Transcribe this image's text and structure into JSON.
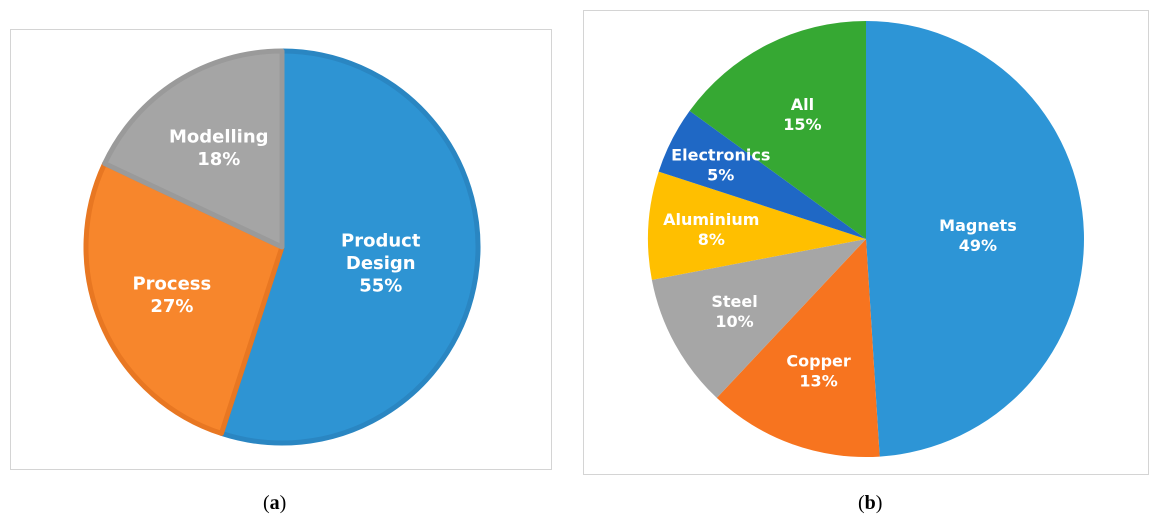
{
  "chart_data": [
    {
      "type": "pie",
      "panel": "a",
      "slices": [
        {
          "label": "Product Design",
          "value": 55,
          "pct_text": "55%",
          "color": "#2e94d3"
        },
        {
          "label": "Process",
          "value": 27,
          "pct_text": "27%",
          "color": "#f7862c"
        },
        {
          "label": "Modelling",
          "value": 18,
          "pct_text": "18%",
          "color": "#a5a5a5"
        }
      ],
      "start_angle_deg": 0,
      "direction": "clockwise",
      "border_colors": [
        "#2a86c2",
        "#e87722",
        "#9a9a9a"
      ]
    },
    {
      "type": "pie",
      "panel": "b",
      "slices": [
        {
          "label": "Magnets",
          "value": 49,
          "pct_text": "49%",
          "color": "#2d95d6"
        },
        {
          "label": "Copper",
          "value": 13,
          "pct_text": "13%",
          "color": "#f7741f"
        },
        {
          "label": "Steel",
          "value": 10,
          "pct_text": "10%",
          "color": "#a6a6a6"
        },
        {
          "label": "Aluminium",
          "value": 8,
          "pct_text": "8%",
          "color": "#ffbf00"
        },
        {
          "label": "Electronics",
          "value": 5,
          "pct_text": "5%",
          "color": "#1f68c5"
        },
        {
          "label": "All",
          "value": 15,
          "pct_text": "15%",
          "color": "#36a833"
        }
      ],
      "start_angle_deg": 0,
      "direction": "clockwise"
    }
  ],
  "captions": {
    "a": {
      "open": "(",
      "letter": "a",
      "close": ")"
    },
    "b": {
      "open": "(",
      "letter": "b",
      "close": ")"
    }
  }
}
